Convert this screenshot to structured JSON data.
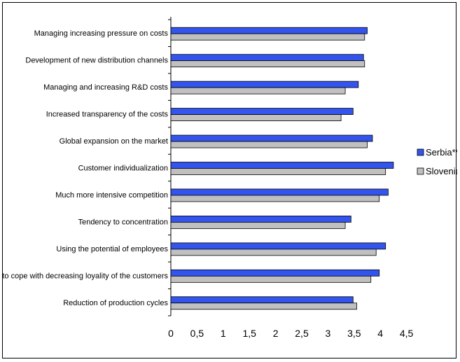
{
  "chart_data": {
    "type": "bar",
    "orientation": "horizontal",
    "categories": [
      "Managing increasing pressure on costs",
      "Development of new distribution channels",
      "Managing and increasing R&D costs",
      "Increased transparency of the costs",
      "Global expansion on the market",
      "Customer individualization",
      "Much more intensive competition",
      "Tendency to concentration",
      "Using the potential of employees",
      "How to cope with decreasing loyality of the customers",
      "Reduction of production cycles"
    ],
    "series": [
      {
        "name": "Serbia**",
        "color": "#3355ee",
        "values": [
          3.75,
          3.68,
          3.58,
          3.48,
          3.85,
          4.25,
          4.15,
          3.44,
          4.1,
          3.98,
          3.48
        ]
      },
      {
        "name": "Slovenia*",
        "color": "#c0c0c0",
        "values": [
          3.7,
          3.7,
          3.33,
          3.25,
          3.75,
          4.1,
          3.98,
          3.33,
          3.92,
          3.82,
          3.55
        ]
      }
    ],
    "xlim": [
      0,
      4.5
    ],
    "xticks": [
      "0",
      "0,5",
      "1",
      "1,5",
      "2",
      "2,5",
      "3",
      "3,5",
      "4",
      "4,5"
    ],
    "legend_position": "right",
    "grid": false
  }
}
